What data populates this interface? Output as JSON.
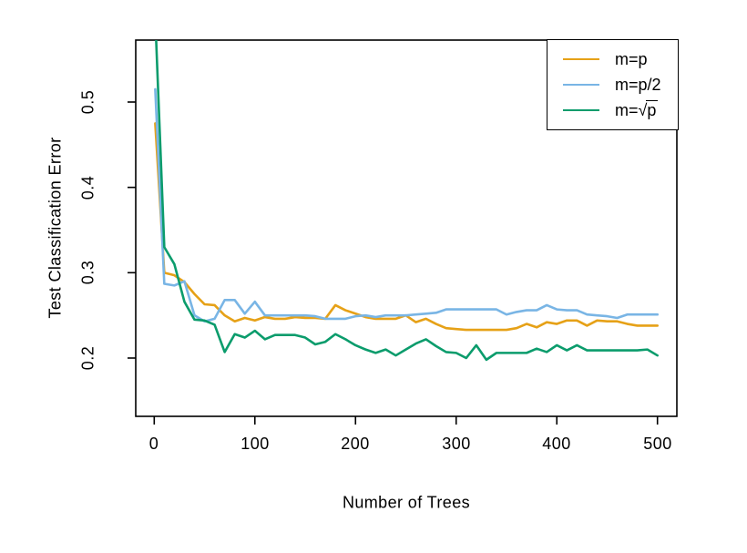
{
  "chart_data": {
    "type": "line",
    "title": "",
    "xlabel": "Number of Trees",
    "ylabel": "Test Classification Error",
    "xlim": [
      -18,
      519
    ],
    "ylim": [
      0.13,
      0.57
    ],
    "grid": false,
    "legend_position": "top-right",
    "x_ticks": [
      0,
      100,
      200,
      300,
      400,
      500
    ],
    "x_tick_labels": [
      "0",
      "100",
      "200",
      "300",
      "400",
      "500"
    ],
    "y_ticks": [
      0.2,
      0.3,
      0.4,
      0.5
    ],
    "y_tick_labels": [
      "0.2",
      "0.3",
      "0.4",
      "0.5"
    ],
    "x": [
      1,
      10,
      20,
      30,
      40,
      50,
      60,
      70,
      80,
      90,
      100,
      110,
      120,
      130,
      140,
      150,
      160,
      170,
      180,
      190,
      200,
      210,
      220,
      230,
      240,
      250,
      260,
      270,
      280,
      290,
      300,
      310,
      320,
      330,
      340,
      350,
      360,
      370,
      380,
      390,
      400,
      410,
      420,
      430,
      440,
      450,
      460,
      470,
      480,
      490,
      500
    ],
    "series": [
      {
        "name": "m=p",
        "color": "#E6A117",
        "values": [
          0.475,
          0.3,
          0.297,
          0.289,
          0.275,
          0.263,
          0.262,
          0.25,
          0.243,
          0.247,
          0.244,
          0.248,
          0.246,
          0.246,
          0.248,
          0.247,
          0.247,
          0.246,
          0.262,
          0.256,
          0.252,
          0.248,
          0.246,
          0.246,
          0.246,
          0.25,
          0.242,
          0.246,
          0.24,
          0.235,
          0.234,
          0.233,
          0.233,
          0.233,
          0.233,
          0.233,
          0.235,
          0.24,
          0.236,
          0.242,
          0.24,
          0.244,
          0.244,
          0.238,
          0.244,
          0.243,
          0.243,
          0.24,
          0.238,
          0.238,
          0.238
        ]
      },
      {
        "name": "m=p/2",
        "color": "#79B5E5",
        "values": [
          0.515,
          0.287,
          0.285,
          0.29,
          0.25,
          0.243,
          0.246,
          0.268,
          0.268,
          0.252,
          0.266,
          0.25,
          0.25,
          0.25,
          0.25,
          0.25,
          0.249,
          0.246,
          0.246,
          0.246,
          0.249,
          0.25,
          0.248,
          0.25,
          0.25,
          0.25,
          0.251,
          0.252,
          0.253,
          0.257,
          0.257,
          0.257,
          0.257,
          0.257,
          0.257,
          0.251,
          0.254,
          0.256,
          0.256,
          0.262,
          0.257,
          0.256,
          0.256,
          0.251,
          0.25,
          0.249,
          0.247,
          0.251,
          0.251,
          0.251,
          0.251
        ]
      },
      {
        "name": "m=sqrt(p)",
        "color": "#0B9C6C",
        "values": [
          0.6,
          0.33,
          0.31,
          0.266,
          0.245,
          0.244,
          0.239,
          0.207,
          0.228,
          0.224,
          0.232,
          0.222,
          0.227,
          0.227,
          0.227,
          0.224,
          0.216,
          0.219,
          0.228,
          0.222,
          0.215,
          0.21,
          0.206,
          0.21,
          0.203,
          0.21,
          0.217,
          0.222,
          0.214,
          0.207,
          0.206,
          0.2,
          0.215,
          0.198,
          0.206,
          0.206,
          0.206,
          0.206,
          0.211,
          0.207,
          0.215,
          0.209,
          0.215,
          0.209,
          0.209,
          0.209,
          0.209,
          0.209,
          0.209,
          0.21,
          0.203
        ]
      }
    ]
  },
  "legend": {
    "items": [
      {
        "label": "m=p",
        "color": "#E6A117"
      },
      {
        "label": "m=p/2",
        "color": "#79B5E5"
      },
      {
        "label": "m=√p",
        "prefix": "m=",
        "radical": "√",
        "radicand": "p",
        "color": "#0B9C6C"
      }
    ]
  }
}
